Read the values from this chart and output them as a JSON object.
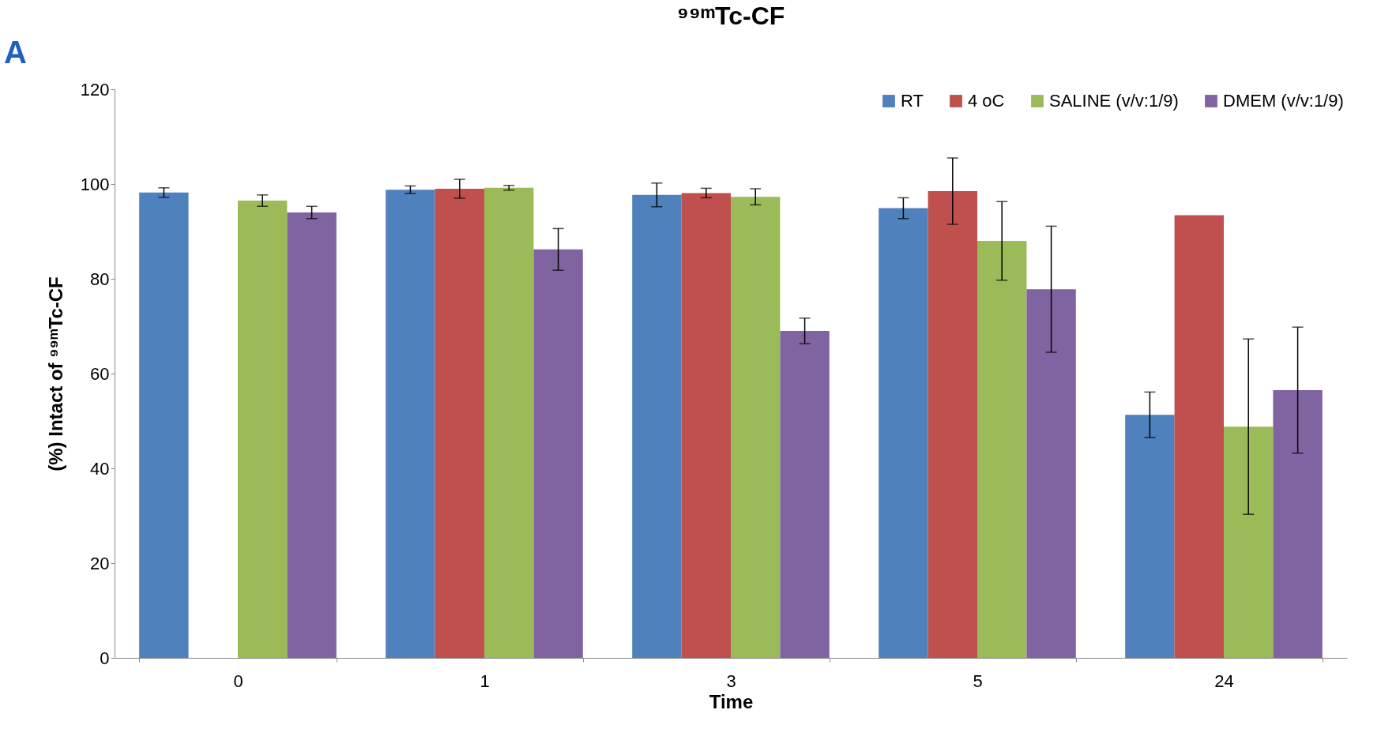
{
  "chart_data": {
    "type": "bar",
    "title": "⁹⁹ᵐTc-CF",
    "xlabel": "Time",
    "ylabel": "(%) Intact of ⁹⁹ᵐTc-CF",
    "annotations": [
      "A"
    ],
    "categories": [
      "0",
      "1",
      "3",
      "5",
      "24"
    ],
    "series": [
      {
        "name": "RT",
        "color": "#4f81bd",
        "values": [
          98.2,
          98.8,
          97.7,
          94.9,
          51.3
        ],
        "errors": [
          1.0,
          0.8,
          2.5,
          2.2,
          4.8
        ]
      },
      {
        "name": "4 oC",
        "color": "#c0504d",
        "values": [
          null,
          99.0,
          98.1,
          98.5,
          93.4
        ],
        "errors": [
          null,
          2.0,
          1.0,
          7.0,
          null
        ]
      },
      {
        "name": "SALINE (v/v:1/9)",
        "color": "#9bbb59",
        "values": [
          96.5,
          99.2,
          97.3,
          88.0,
          48.8
        ],
        "errors": [
          1.2,
          0.5,
          1.7,
          8.3,
          18.5
        ]
      },
      {
        "name": "DMEM (v/v:1/9)",
        "color": "#8064a2",
        "values": [
          94.0,
          86.2,
          69.0,
          77.8,
          56.5
        ],
        "errors": [
          1.3,
          4.4,
          2.7,
          13.3,
          13.3
        ]
      }
    ],
    "ylim": [
      0,
      120
    ],
    "yticks": [
      0,
      20,
      40,
      60,
      80,
      100,
      120
    ],
    "grid": false,
    "legend": "top right"
  }
}
